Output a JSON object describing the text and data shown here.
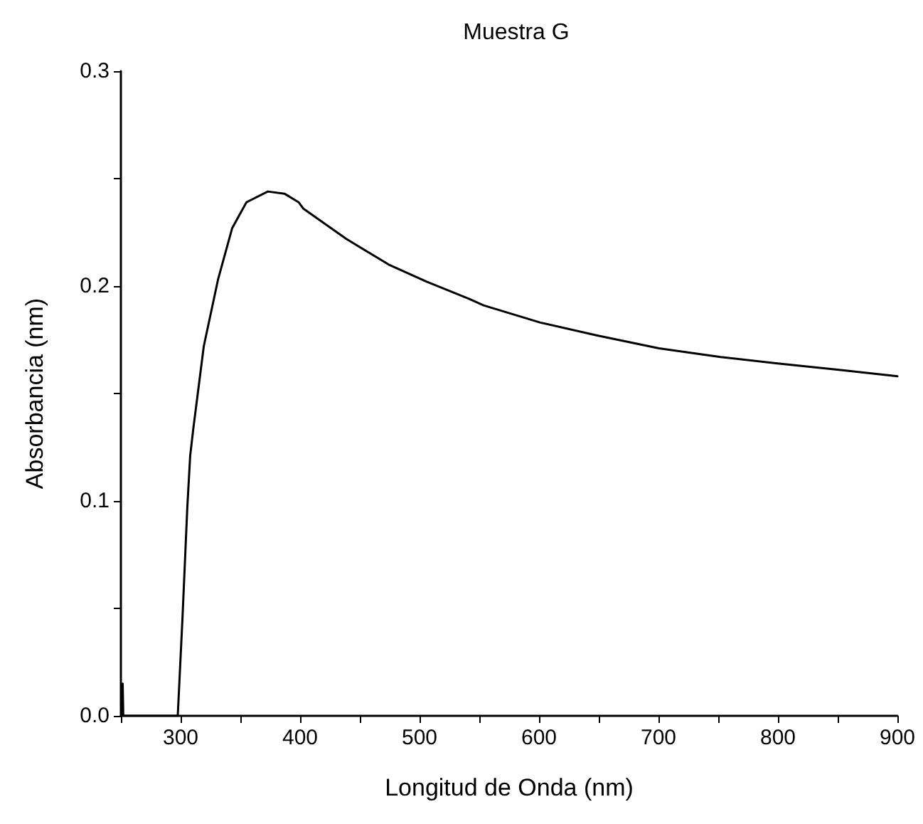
{
  "chart_data": {
    "type": "line",
    "title": "Muestra G",
    "xlabel": "Longitud de Onda (nm)",
    "ylabel": "Absorbancia (nm)",
    "series": [
      {
        "color": "#000000",
        "x": [
          251,
          251.5,
          252,
          297.6,
          301.6,
          305.6,
          308,
          310.7,
          319.4,
          331.3,
          343.2,
          355.1,
          373,
          386.9,
          398.8,
          402.8,
          438.5,
          474.2,
          506,
          541.7,
          553.6,
          601.2,
          648.8,
          700.4,
          752,
          799.6,
          851.2,
          900
        ],
        "values": [
          0,
          0.015,
          0,
          0,
          0.046,
          0.097,
          0.121,
          0.134,
          0.172,
          0.203,
          0.227,
          0.239,
          0.244,
          0.243,
          0.239,
          0.236,
          0.222,
          0.21,
          0.202,
          0.194,
          0.191,
          0.183,
          0.177,
          0.171,
          0.167,
          0.164,
          0.161,
          0.158
        ]
      }
    ],
    "xlim": [
      250,
      900
    ],
    "ylim": [
      0,
      0.3
    ],
    "xticks": [
      {
        "value": 250,
        "label": null
      },
      300,
      {
        "value": 350,
        "label": null
      },
      400,
      {
        "value": 450,
        "label": null
      },
      500,
      {
        "value": 550,
        "label": null
      },
      600,
      {
        "value": 650,
        "label": null
      },
      700,
      {
        "value": 750,
        "label": null
      },
      800,
      {
        "value": 850,
        "label": null
      },
      900
    ],
    "yticks": [
      {
        "value": 0,
        "label": "0.0"
      },
      {
        "value": 0.05,
        "label": null
      },
      0.1,
      {
        "value": 0.15,
        "label": null
      },
      0.2,
      {
        "value": 0.25,
        "label": null
      },
      0.3
    ],
    "grid": false,
    "marker": "none",
    "line_style": "solid"
  }
}
